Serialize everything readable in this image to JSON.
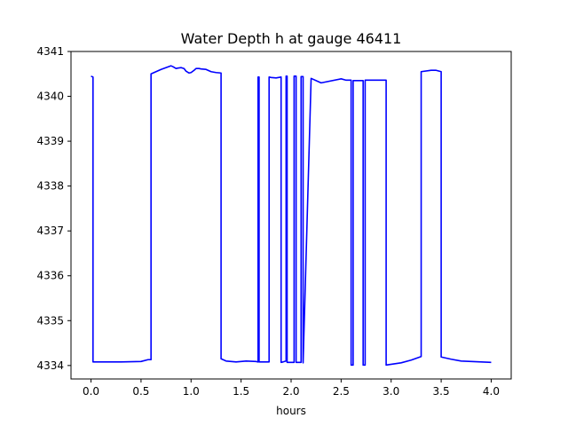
{
  "chart_data": {
    "type": "line",
    "title": "Water Depth h at gauge 46411",
    "xlabel": "hours",
    "ylabel": "",
    "xlim": [
      -0.2,
      4.2
    ],
    "ylim": [
      4333.7,
      4341.0
    ],
    "xticks": [
      0.0,
      0.5,
      1.0,
      1.5,
      2.0,
      2.5,
      3.0,
      3.5,
      4.0
    ],
    "xtick_labels": [
      "0.0",
      "0.5",
      "1.0",
      "1.5",
      "2.0",
      "2.5",
      "3.0",
      "3.5",
      "4.0"
    ],
    "yticks": [
      4334,
      4335,
      4336,
      4337,
      4338,
      4339,
      4340,
      4341
    ],
    "ytick_labels": [
      "4334",
      "4335",
      "4336",
      "4337",
      "4338",
      "4339",
      "4340",
      "4341"
    ],
    "grid": false,
    "series": [
      {
        "color": "#0000ff",
        "x": [
          0.0,
          0.02,
          0.02,
          0.1,
          0.3,
          0.5,
          0.57,
          0.6,
          0.6,
          0.7,
          0.8,
          0.82,
          0.85,
          0.87,
          0.9,
          0.93,
          0.95,
          0.98,
          1.0,
          1.03,
          1.05,
          1.08,
          1.1,
          1.15,
          1.2,
          1.25,
          1.3,
          1.3,
          1.35,
          1.45,
          1.55,
          1.65,
          1.67,
          1.67,
          1.68,
          1.68,
          1.7,
          1.78,
          1.78,
          1.8,
          1.85,
          1.9,
          1.9,
          1.92,
          1.95,
          1.95,
          1.96,
          1.96,
          2.03,
          2.03,
          2.05,
          2.05,
          2.1,
          2.1,
          2.12,
          2.12,
          2.2,
          2.3,
          2.5,
          2.55,
          2.6,
          2.6,
          2.62,
          2.62,
          2.7,
          2.72,
          2.72,
          2.74,
          2.74,
          2.95,
          2.95,
          3.1,
          3.2,
          3.3,
          3.3,
          3.4,
          3.45,
          3.5,
          3.5,
          3.6,
          3.7,
          3.8,
          4.0
        ],
        "y": [
          4340.45,
          4340.43,
          4334.08,
          4334.08,
          4334.08,
          4334.09,
          4334.13,
          4334.13,
          4340.5,
          4340.6,
          4340.68,
          4340.66,
          4340.62,
          4340.63,
          4340.64,
          4340.62,
          4340.56,
          4340.52,
          4340.53,
          4340.58,
          4340.62,
          4340.62,
          4340.61,
          4340.6,
          4340.55,
          4340.53,
          4340.52,
          4334.15,
          4334.1,
          4334.08,
          4334.1,
          4334.09,
          4334.08,
          4340.43,
          4340.43,
          4334.08,
          4334.08,
          4334.08,
          4340.43,
          4340.42,
          4340.41,
          4340.43,
          4334.07,
          4334.08,
          4334.1,
          4340.45,
          4340.45,
          4334.07,
          4334.07,
          4340.45,
          4340.45,
          4334.07,
          4334.07,
          4340.44,
          4340.44,
          4334.06,
          4340.4,
          4340.3,
          4340.39,
          4340.36,
          4340.36,
          4334.01,
          4334.01,
          4340.35,
          4340.35,
          4340.35,
          4334.01,
          4334.01,
          4340.36,
          4340.36,
          4334.01,
          4334.06,
          4334.12,
          4334.2,
          4340.55,
          4340.58,
          4340.58,
          4340.55,
          4334.19,
          4334.14,
          4334.1,
          4334.09,
          4334.07
        ]
      }
    ]
  }
}
